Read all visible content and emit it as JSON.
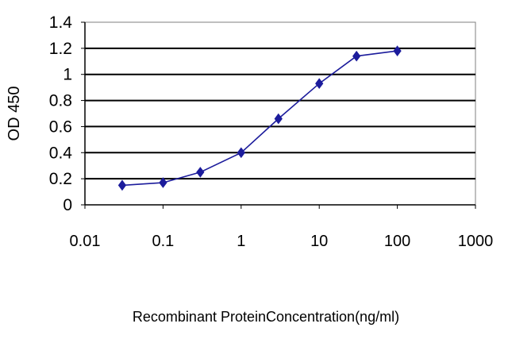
{
  "chart_data": {
    "type": "line",
    "xscale": "log",
    "xlabel": "Recombinant ProteinConcentration(ng/ml)",
    "ylabel": "OD 450",
    "xlim": [
      0.01,
      1000
    ],
    "ylim": [
      0,
      1.4
    ],
    "xticks": [
      "0.01",
      "0.1",
      "1",
      "10",
      "100",
      "1000"
    ],
    "yticks": [
      "0",
      "0.2",
      "0.4",
      "0.6",
      "0.8",
      "1",
      "1.2",
      "1.4"
    ],
    "grid": "horizontal",
    "series": [
      {
        "color": "#1c1c9c",
        "marker": "diamond",
        "x": [
          0.03,
          0.1,
          0.3,
          1,
          3,
          10,
          30,
          100
        ],
        "y": [
          0.15,
          0.17,
          0.25,
          0.4,
          0.66,
          0.93,
          1.14,
          1.18
        ]
      }
    ]
  }
}
